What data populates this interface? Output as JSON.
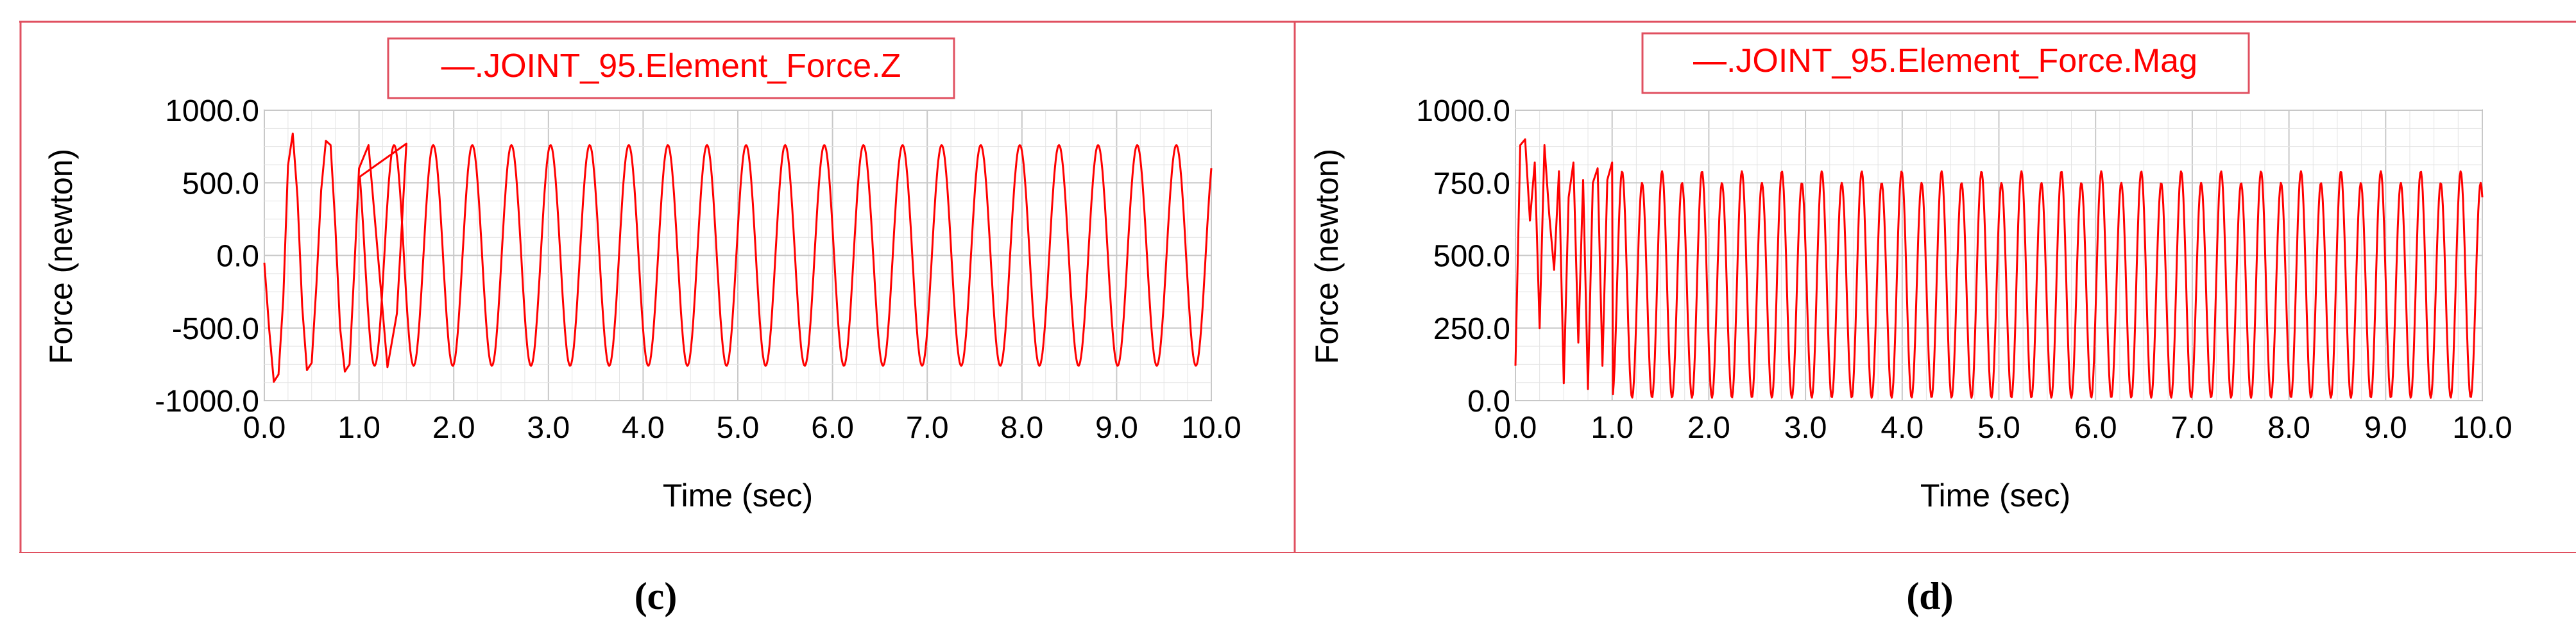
{
  "figure": {
    "panel_labels": [
      "(c)",
      "(d)"
    ],
    "colors": {
      "series": "#ff0000",
      "frame": "#e05060",
      "axis": "#808080",
      "grid": "#c8c8c8",
      "text": "#000000"
    }
  },
  "chart_data": [
    {
      "type": "line",
      "panel": "c",
      "legend": "—.JOINT_95.Element_Force.Z",
      "xlabel": "Time (sec)",
      "ylabel": "Force (newton)",
      "xlim": [
        0,
        10
      ],
      "ylim": [
        -1000,
        1000
      ],
      "xticks": [
        "0.0",
        "1.0",
        "2.0",
        "3.0",
        "4.0",
        "5.0",
        "6.0",
        "7.0",
        "8.0",
        "9.0",
        "10.0"
      ],
      "yticks": [
        "-1000.0",
        "-500.0",
        "0.0",
        "500.0",
        "1000.0"
      ],
      "grid": true,
      "series": [
        {
          "name": ".JOINT_95.Element_Force.Z",
          "description_values": {
            "x": [
              0.0,
              0.05,
              0.1,
              0.15,
              0.2,
              0.25,
              0.3,
              0.35,
              0.4,
              0.45,
              0.5,
              0.55,
              0.6,
              0.65,
              0.7,
              0.75,
              0.8,
              0.85,
              0.9,
              0.95,
              1.0,
              1.1,
              1.2,
              1.3,
              1.4,
              1.5
            ],
            "y": [
              -50,
              -500,
              -870,
              -820,
              -300,
              620,
              840,
              400,
              -350,
              -790,
              -740,
              -200,
              450,
              790,
              760,
              200,
              -500,
              -800,
              -750,
              -100,
              600,
              760,
              0,
              -770,
              -400,
              770
            ]
          },
          "steady_state": {
            "amplitude": 760,
            "period_sec": 0.413,
            "start_sec": 1.0
          }
        }
      ]
    },
    {
      "type": "line",
      "panel": "d",
      "legend": "—.JOINT_95.Element_Force.Mag",
      "xlabel": "Time (sec)",
      "ylabel": "Force (newton)",
      "xlim": [
        0,
        10
      ],
      "ylim": [
        0,
        1000
      ],
      "xticks": [
        "0.0",
        "1.0",
        "2.0",
        "3.0",
        "4.0",
        "5.0",
        "6.0",
        "7.0",
        "8.0",
        "9.0",
        "10.0"
      ],
      "yticks": [
        "0.0",
        "250.0",
        "500.0",
        "750.0",
        "1000.0"
      ],
      "grid": true,
      "series": [
        {
          "name": ".JOINT_95.Element_Force.Mag",
          "description_values": {
            "x": [
              0.0,
              0.05,
              0.1,
              0.15,
              0.2,
              0.25,
              0.3,
              0.35,
              0.4,
              0.45,
              0.5,
              0.55,
              0.6,
              0.65,
              0.7,
              0.75,
              0.8,
              0.85,
              0.9,
              0.95,
              1.0
            ],
            "y": [
              120,
              880,
              900,
              620,
              820,
              250,
              880,
              640,
              450,
              790,
              60,
              700,
              820,
              200,
              760,
              40,
              750,
              800,
              120,
              760,
              820
            ]
          },
          "steady_state": {
            "peak_high": 790,
            "peak_low": 750,
            "trough": 10,
            "period_sec": 0.2065,
            "start_sec": 1.0
          }
        }
      ]
    }
  ]
}
